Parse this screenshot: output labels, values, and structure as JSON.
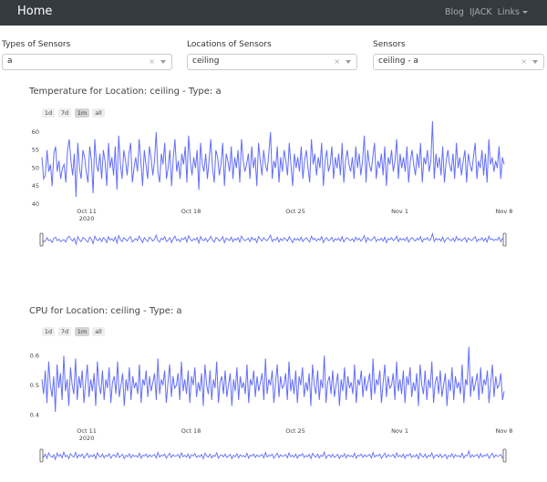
{
  "nav": {
    "brand": "Home",
    "links": [
      "Blog",
      "IJACK",
      "Links"
    ]
  },
  "filters": [
    {
      "label": "Types of Sensors",
      "value": "a"
    },
    {
      "label": "Locations of Sensors",
      "value": "ceiling"
    },
    {
      "label": "Sensors",
      "value": "ceiling - a"
    }
  ],
  "charts": [
    {
      "title": "Temperature for Location: ceiling - Type: a",
      "buttons": [
        "1d",
        "7d",
        "1m",
        "all"
      ],
      "active_button": "1m"
    },
    {
      "title": "CPU for Location: ceiling - Type: a",
      "buttons": [
        "1d",
        "7d",
        "1m",
        "all"
      ],
      "active_button": "1m"
    }
  ],
  "chart_data": [
    {
      "type": "line",
      "title": "Temperature for Location: ceiling - Type: a",
      "xlabel": "",
      "ylabel": "",
      "line_color": "#636efa",
      "grid": false,
      "x_range": [
        "2020-10-08",
        "2020-11-08"
      ],
      "xticks": [
        [
          "Oct 11",
          "2020"
        ],
        [
          "Oct 18"
        ],
        [
          "Oct 25"
        ],
        [
          "Nov 1"
        ],
        [
          "Nov 8"
        ]
      ],
      "xtick_dates": [
        "2020-10-11",
        "2020-10-18",
        "2020-10-25",
        "2020-11-01",
        "2020-11-08"
      ],
      "yticks": [
        40,
        45,
        50,
        55,
        60
      ],
      "ylim": [
        40,
        62
      ],
      "range_slider": true,
      "y": [
        53,
        47,
        48,
        55,
        49,
        51,
        45,
        54,
        56,
        49,
        52,
        47,
        50,
        51,
        46,
        55,
        58,
        52,
        48,
        54,
        42,
        57,
        50,
        47,
        55,
        53,
        49,
        46,
        56,
        52,
        43,
        58,
        51,
        49,
        54,
        47,
        55,
        52,
        45,
        57,
        50,
        53,
        48,
        56,
        44,
        59,
        51,
        47,
        55,
        52,
        48,
        54,
        57,
        46,
        50,
        53,
        49,
        58,
        52,
        45,
        55,
        51,
        47,
        56,
        53,
        48,
        52,
        60,
        49,
        46,
        54,
        51,
        57,
        47,
        50,
        55,
        45,
        53,
        58,
        49,
        52,
        47,
        54,
        51,
        56,
        46,
        59,
        52,
        48,
        53,
        50,
        55,
        44,
        57,
        51,
        49,
        54,
        47,
        52,
        58,
        50,
        46,
        55,
        53,
        48,
        51,
        57,
        45,
        54,
        52,
        49,
        56,
        47,
        53,
        50,
        55,
        46,
        58,
        52,
        49,
        51,
        54,
        47,
        56,
        50,
        53,
        45,
        57,
        52,
        48,
        55,
        51,
        49,
        54,
        60,
        47,
        52,
        50,
        56,
        46,
        53,
        49,
        55,
        52,
        48,
        57,
        51,
        45,
        54,
        50,
        53,
        49,
        56,
        47,
        52,
        55,
        50,
        46,
        58,
        51,
        54,
        48,
        53,
        50,
        57,
        45,
        52,
        55,
        49,
        51,
        56,
        47,
        53,
        50,
        54,
        48,
        57,
        46,
        52,
        55,
        51,
        49,
        53,
        47,
        56,
        50,
        54,
        48,
        52,
        59,
        46,
        55,
        51,
        49,
        53,
        57,
        47,
        52,
        50,
        54,
        48,
        56,
        45,
        53,
        51,
        55,
        49,
        52,
        58,
        47,
        54,
        50,
        53,
        49,
        56,
        46,
        52,
        55,
        51,
        48,
        54,
        50,
        57,
        46,
        53,
        51,
        55,
        49,
        52,
        63,
        47,
        54,
        50,
        53,
        48,
        56,
        46,
        52,
        55,
        51,
        49,
        54,
        47,
        57,
        50,
        53,
        48,
        52,
        55,
        46,
        54,
        51,
        49,
        53,
        57,
        47,
        52,
        50,
        55,
        48,
        54,
        46,
        58,
        51,
        53,
        49,
        52,
        50,
        56,
        47,
        53,
        51
      ]
    },
    {
      "type": "line",
      "title": "CPU for Location: ceiling - Type: a",
      "xlabel": "",
      "ylabel": "",
      "line_color": "#636efa",
      "grid": false,
      "x_range": [
        "2020-10-08",
        "2020-11-08"
      ],
      "xticks": [
        [
          "Oct 11",
          "2020"
        ],
        [
          "Oct 18"
        ],
        [
          "Oct 25"
        ],
        [
          "Nov 1"
        ],
        [
          "Nov 8"
        ]
      ],
      "xtick_dates": [
        "2020-10-11",
        "2020-10-18",
        "2020-10-25",
        "2020-11-01",
        "2020-11-08"
      ],
      "yticks": [
        0.4,
        0.5,
        0.6
      ],
      "ylim": [
        0.37,
        0.65
      ],
      "range_slider": true,
      "y": [
        0.52,
        0.47,
        0.55,
        0.44,
        0.58,
        0.5,
        0.46,
        0.53,
        0.41,
        0.57,
        0.49,
        0.54,
        0.45,
        0.6,
        0.48,
        0.52,
        0.43,
        0.56,
        0.5,
        0.47,
        0.59,
        0.45,
        0.53,
        0.49,
        0.55,
        0.44,
        0.51,
        0.57,
        0.46,
        0.52,
        0.48,
        0.54,
        0.43,
        0.58,
        0.5,
        0.47,
        0.55,
        0.45,
        0.52,
        0.49,
        0.56,
        0.44,
        0.51,
        0.53,
        0.47,
        0.58,
        0.46,
        0.5,
        0.54,
        0.43,
        0.52,
        0.48,
        0.56,
        0.45,
        0.53,
        0.49,
        0.51,
        0.47,
        0.57,
        0.44,
        0.52,
        0.5,
        0.55,
        0.46,
        0.53,
        0.48,
        0.51,
        0.54,
        0.45,
        0.59,
        0.47,
        0.52,
        0.5,
        0.55,
        0.44,
        0.51,
        0.57,
        0.46,
        0.53,
        0.49,
        0.5,
        0.54,
        0.45,
        0.58,
        0.48,
        0.52,
        0.47,
        0.55,
        0.44,
        0.53,
        0.5,
        0.56,
        0.46,
        0.51,
        0.48,
        0.54,
        0.43,
        0.57,
        0.5,
        0.47,
        0.55,
        0.45,
        0.52,
        0.49,
        0.58,
        0.44,
        0.51,
        0.53,
        0.47,
        0.55,
        0.46,
        0.5,
        0.54,
        0.43,
        0.52,
        0.48,
        0.56,
        0.45,
        0.53,
        0.49,
        0.51,
        0.47,
        0.57,
        0.44,
        0.52,
        0.5,
        0.55,
        0.46,
        0.53,
        0.48,
        0.51,
        0.54,
        0.45,
        0.59,
        0.47,
        0.52,
        0.5,
        0.55,
        0.44,
        0.51,
        0.57,
        0.46,
        0.53,
        0.49,
        0.5,
        0.54,
        0.45,
        0.58,
        0.48,
        0.52,
        0.47,
        0.55,
        0.44,
        0.53,
        0.5,
        0.56,
        0.46,
        0.51,
        0.48,
        0.54,
        0.43,
        0.57,
        0.5,
        0.47,
        0.55,
        0.45,
        0.52,
        0.49,
        0.6,
        0.44,
        0.51,
        0.53,
        0.47,
        0.55,
        0.46,
        0.5,
        0.54,
        0.43,
        0.52,
        0.48,
        0.56,
        0.45,
        0.53,
        0.49,
        0.51,
        0.47,
        0.57,
        0.44,
        0.52,
        0.5,
        0.55,
        0.46,
        0.53,
        0.48,
        0.51,
        0.54,
        0.45,
        0.59,
        0.47,
        0.52,
        0.5,
        0.55,
        0.44,
        0.51,
        0.57,
        0.46,
        0.53,
        0.49,
        0.5,
        0.54,
        0.45,
        0.58,
        0.48,
        0.52,
        0.47,
        0.55,
        0.44,
        0.53,
        0.5,
        0.56,
        0.46,
        0.51,
        0.48,
        0.54,
        0.43,
        0.57,
        0.5,
        0.47,
        0.55,
        0.45,
        0.52,
        0.49,
        0.58,
        0.44,
        0.51,
        0.53,
        0.47,
        0.55,
        0.46,
        0.5,
        0.54,
        0.43,
        0.52,
        0.48,
        0.56,
        0.45,
        0.53,
        0.49,
        0.51,
        0.47,
        0.57,
        0.44,
        0.52,
        0.5,
        0.63,
        0.46,
        0.53,
        0.48,
        0.51,
        0.54,
        0.45,
        0.56,
        0.47,
        0.52,
        0.5,
        0.55,
        0.44,
        0.51,
        0.57,
        0.46,
        0.53,
        0.49,
        0.5,
        0.54,
        0.45,
        0.48
      ]
    }
  ]
}
